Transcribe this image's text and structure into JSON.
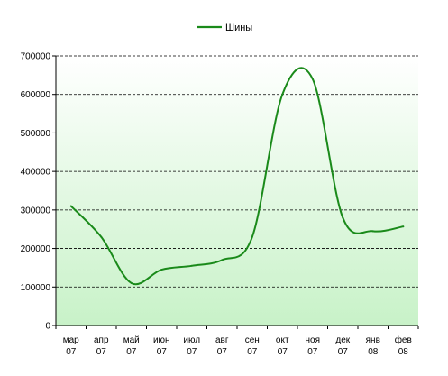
{
  "chart_data": {
    "type": "line",
    "title": "",
    "xlabel": "",
    "ylabel": "",
    "categories": [
      [
        "мар",
        "07"
      ],
      [
        "апр",
        "07"
      ],
      [
        "май",
        "07"
      ],
      [
        "июн",
        "07"
      ],
      [
        "июл",
        "07"
      ],
      [
        "авг",
        "07"
      ],
      [
        "сен",
        "07"
      ],
      [
        "окт",
        "07"
      ],
      [
        "ноя",
        "07"
      ],
      [
        "дек",
        "07"
      ],
      [
        "янв",
        "08"
      ],
      [
        "фев",
        "08"
      ]
    ],
    "series": [
      {
        "name": "Шины",
        "values": [
          310000,
          230000,
          110000,
          145000,
          155000,
          170000,
          230000,
          600000,
          640000,
          280000,
          245000,
          257000
        ]
      }
    ],
    "ylim": [
      0,
      700000
    ],
    "yticks": [
      0,
      100000,
      200000,
      300000,
      400000,
      500000,
      600000,
      700000
    ],
    "grid": true,
    "legend": "top-center",
    "colors": {
      "line": "#1a8a1a",
      "plot_top": "#ffffff",
      "plot_bottom": "#c8f2c8",
      "grid": "#000000"
    }
  }
}
